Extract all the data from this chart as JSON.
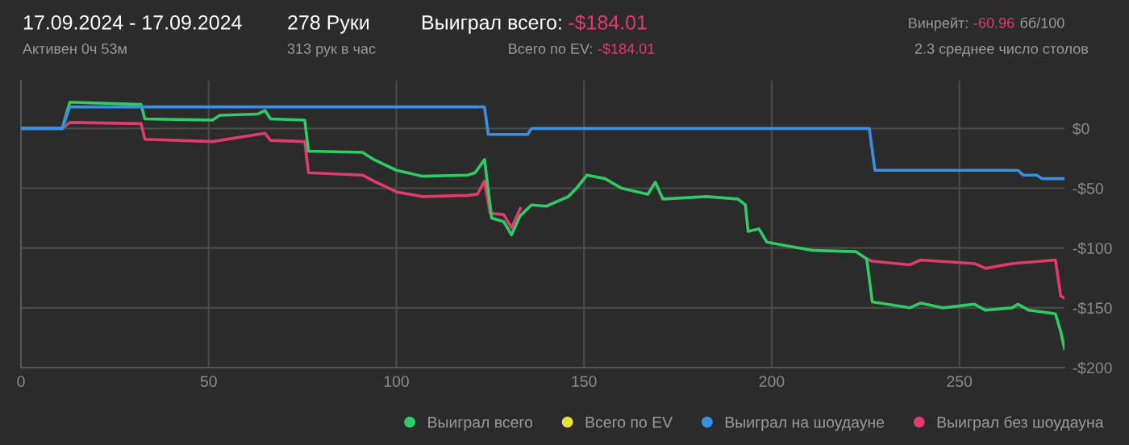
{
  "chart_data": {
    "type": "line",
    "annotations": [
      "17.09.2024 - 17.09.2024",
      "Активен 0ч 53м",
      "278 Руки",
      "313 рук в час",
      "Выиграл всего:",
      "-$184.01",
      "Всего по EV:",
      "-$184.01",
      "Винрейт:",
      "-60.96",
      "бб/100",
      "2.3 среднее число столов"
    ],
    "xlim": [
      0,
      278
    ],
    "xticks": [
      0,
      50,
      100,
      150,
      200,
      250
    ],
    "ylim": [
      -200,
      40
    ],
    "yticks": [
      {
        "value": 0,
        "label": "$0"
      },
      {
        "value": -50,
        "label": "-$50"
      },
      {
        "value": -100,
        "label": "-$100"
      },
      {
        "value": -150,
        "label": "-$150"
      },
      {
        "value": -200,
        "label": "-$200"
      }
    ],
    "grid": true,
    "legend": "bottom right",
    "marker": "none",
    "line_style": "solid",
    "series": [
      {
        "name": "Выиграл без шоудауна",
        "color": "#e23a6e",
        "x": [
          0,
          11,
          13,
          32,
          33,
          51,
          63,
          65,
          66.5,
          75.6,
          76.6,
          91,
          94,
          100,
          107,
          119,
          121.6,
          123.5,
          125,
          128.6,
          130.7,
          133,
          136,
          225.3,
          226.8,
          236.8,
          239.7,
          254,
          257,
          264,
          275.6,
          277,
          278
        ],
        "values": [
          0,
          0,
          5,
          4,
          -9,
          -11,
          -5,
          -4,
          -10,
          -11,
          -37,
          -39,
          -44,
          -53,
          -57,
          -56,
          -55,
          -44,
          -71,
          -72,
          -83,
          -67,
          null,
          -109,
          -111,
          -114,
          -110,
          -113,
          -117,
          -113,
          -110,
          -140,
          -142
        ]
      },
      {
        "name": "Выиграл всего",
        "color": "#2fcc66",
        "x": [
          0,
          11,
          13,
          32,
          33,
          51,
          53,
          63,
          65,
          66.5,
          75.6,
          76.6,
          91,
          94,
          100,
          107,
          119,
          121,
          123.5,
          125.4,
          128.6,
          130.7,
          133,
          136,
          140,
          145.8,
          148,
          150.8,
          155.6,
          160,
          167,
          169,
          171,
          182.6,
          191,
          193,
          193.7,
          196.6,
          198.7,
          203.8,
          211,
          222.4,
          225.3,
          226.8,
          236.8,
          239.7,
          245.5,
          254,
          257,
          264,
          265.6,
          268.5,
          275.6,
          277,
          278
        ],
        "values": [
          0,
          0,
          22,
          20,
          8,
          7,
          11,
          12,
          15,
          8,
          7,
          -19,
          -20,
          -26,
          -35,
          -40,
          -39,
          -37,
          -26,
          -75,
          -78,
          -89,
          -73,
          -64,
          -65,
          -57,
          -50,
          -39,
          -42,
          -50,
          -55,
          -45,
          -59,
          -57,
          -59,
          -64,
          -86,
          -84,
          -95,
          -98,
          -102,
          -103,
          -109,
          -145,
          -150,
          -146,
          -150,
          -147,
          -152,
          -150,
          -147,
          -152,
          -155,
          -170,
          -184.01
        ]
      },
      {
        "name": "Всего по EV",
        "color": "#e8e03a"
      },
      {
        "name": "Выиграл на шоудауне",
        "color": "#3a8ee6",
        "x": [
          0,
          11,
          13,
          123.5,
          124.5,
          135,
          136,
          226,
          227.5,
          265.6,
          267,
          270.6,
          272,
          278
        ],
        "values": [
          0,
          0,
          18,
          18,
          -5,
          -5,
          0,
          0,
          -35,
          -35,
          -39,
          -39,
          -42,
          -42
        ]
      }
    ]
  }
}
